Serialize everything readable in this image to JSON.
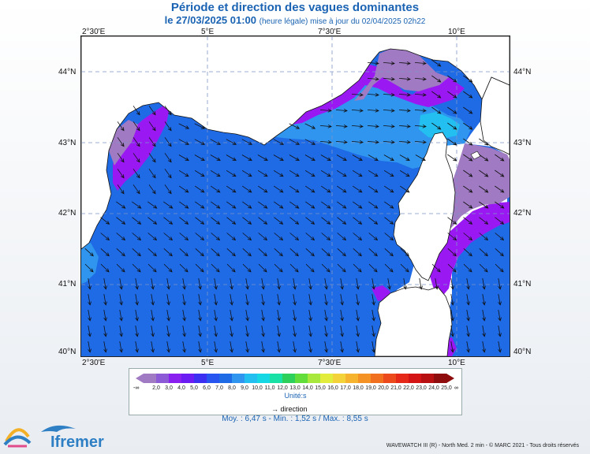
{
  "header": {
    "title": "Période et direction des vagues dominantes",
    "date_line": "le 27/03/2025 01:00",
    "date_note": "(heure légale) mise à jour du 02/04/2025 02h22"
  },
  "map": {
    "lon_labels": [
      "2°30'E",
      "5°E",
      "7°30'E",
      "10°E"
    ],
    "lat_labels": [
      "44°N",
      "43°N",
      "42°N",
      "41°N",
      "40°N"
    ],
    "lon_range": [
      2.0,
      11.25
    ],
    "lat_range": [
      39.95,
      44.45
    ],
    "colors": {
      "sea_blue": "#1f6be6",
      "light_blue": "#2f95ef",
      "cyan": "#22bff0",
      "purple": "#9a19f2",
      "mauve": "#a07ac2",
      "land": "#ffffff",
      "coast": "#111111",
      "arrow": "#111111"
    }
  },
  "legend": {
    "values": [
      "2,0",
      "3,0",
      "4,0",
      "5,0",
      "6,0",
      "7,0",
      "8,0",
      "9,0",
      "10,0",
      "11,0",
      "12,0",
      "13,0",
      "14,0",
      "15,0",
      "16,0",
      "17,0",
      "18,0",
      "19,0",
      "20,0",
      "21,0",
      "22,0",
      "23,0",
      "24,0",
      "25,0"
    ],
    "left_label": "-∞",
    "right_label": "∞",
    "colors": [
      "#a07ac2",
      "#8c5ad6",
      "#8a20f0",
      "#6a1cf2",
      "#3c2ff2",
      "#2855f0",
      "#1f6be6",
      "#2f95ef",
      "#22bff0",
      "#16d8e4",
      "#19e0a4",
      "#2ed05c",
      "#62dd3a",
      "#a8e83c",
      "#e2ec3c",
      "#f3d23a",
      "#f6b42e",
      "#f59226",
      "#f17020",
      "#ec4a1c",
      "#e52818",
      "#d41414",
      "#b80f10",
      "#8e0c0c"
    ],
    "unit": "Unité:s",
    "direction_label": "direction"
  },
  "stats": "Moy. : 6,47 s   -   Min. : 1,52 s / Max. : 8,55 s",
  "credit": "WAVEWATCH III (R) - North Med. 2 min - © MARC 2021 - Tous droits réservés",
  "logos": {
    "lops": "LOPS",
    "ifremer": "Ifremer"
  }
}
